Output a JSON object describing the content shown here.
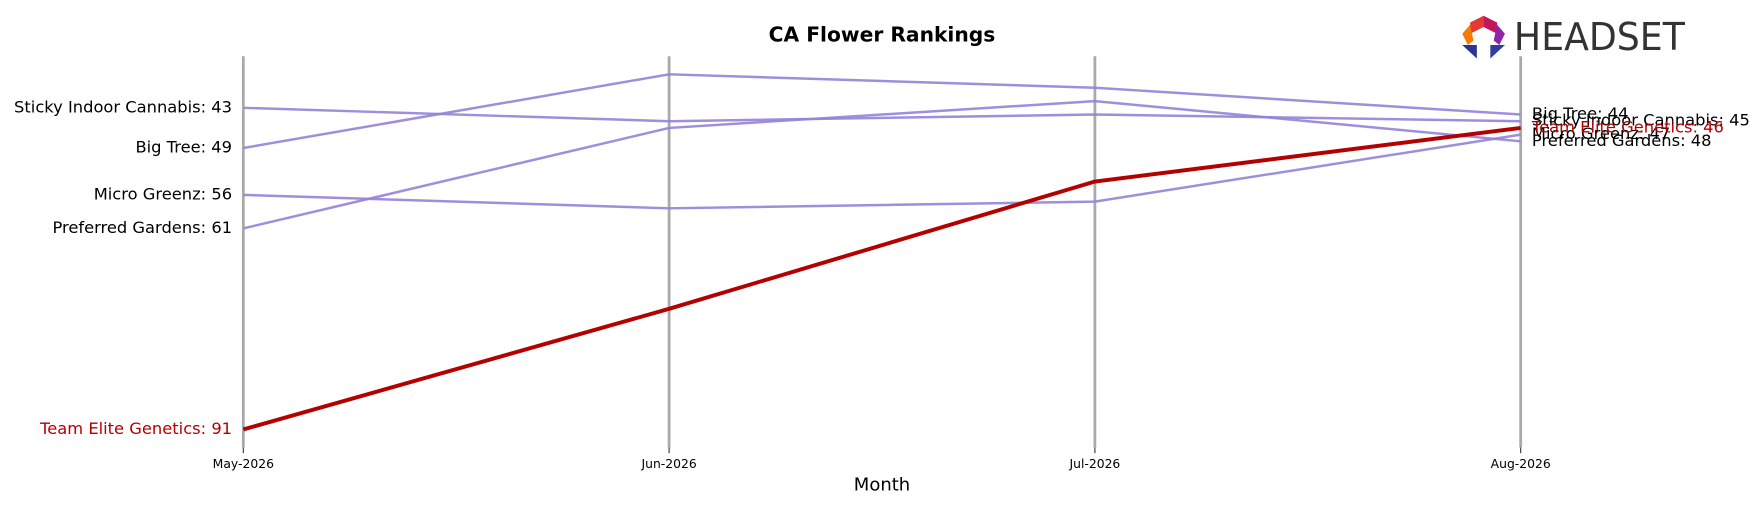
{
  "chart_data": {
    "type": "line",
    "title": "CA Flower Rankings",
    "x_label": "Month",
    "logo": "HEADSET",
    "categories": [
      "May-2026",
      "Jun-2026",
      "Jul-2026",
      "Aug-2026"
    ],
    "ylim": [
      93.7,
      35.3
    ],
    "series": [
      {
        "name": "Sticky Indoor Cannabis",
        "color": "#9383d9",
        "highlight": false,
        "values": [
          43,
          45,
          44,
          45
        ],
        "value_labels": [
          "Sticky Indoor Cannabis: 43",
          null,
          null,
          "Sticky Indoor Cannabis: 45"
        ]
      },
      {
        "name": "Big Tree",
        "color": "#9383d9",
        "highlight": false,
        "values": [
          49,
          38,
          40,
          44
        ],
        "value_labels": [
          "Big Tree: 49",
          null,
          null,
          "Big Tree: 44"
        ]
      },
      {
        "name": "Micro Greenz",
        "color": "#9383d9",
        "highlight": false,
        "values": [
          56,
          58,
          57,
          47
        ],
        "value_labels": [
          "Micro Greenz: 56",
          null,
          null,
          "Micro Greenz: 47"
        ]
      },
      {
        "name": "Preferred Gardens",
        "color": "#9383d9",
        "highlight": false,
        "values": [
          61,
          46,
          42,
          48
        ],
        "value_labels": [
          "Preferred Gardens: 61",
          null,
          null,
          "Preferred Gardens: 48"
        ]
      },
      {
        "name": "Team Elite Genetics",
        "color": "#b30000",
        "highlight": true,
        "values": [
          91,
          73,
          54,
          46
        ],
        "value_labels": [
          "Team Elite Genetics: 91",
          null,
          null,
          "Team Elite Genetics: 46"
        ]
      }
    ]
  }
}
